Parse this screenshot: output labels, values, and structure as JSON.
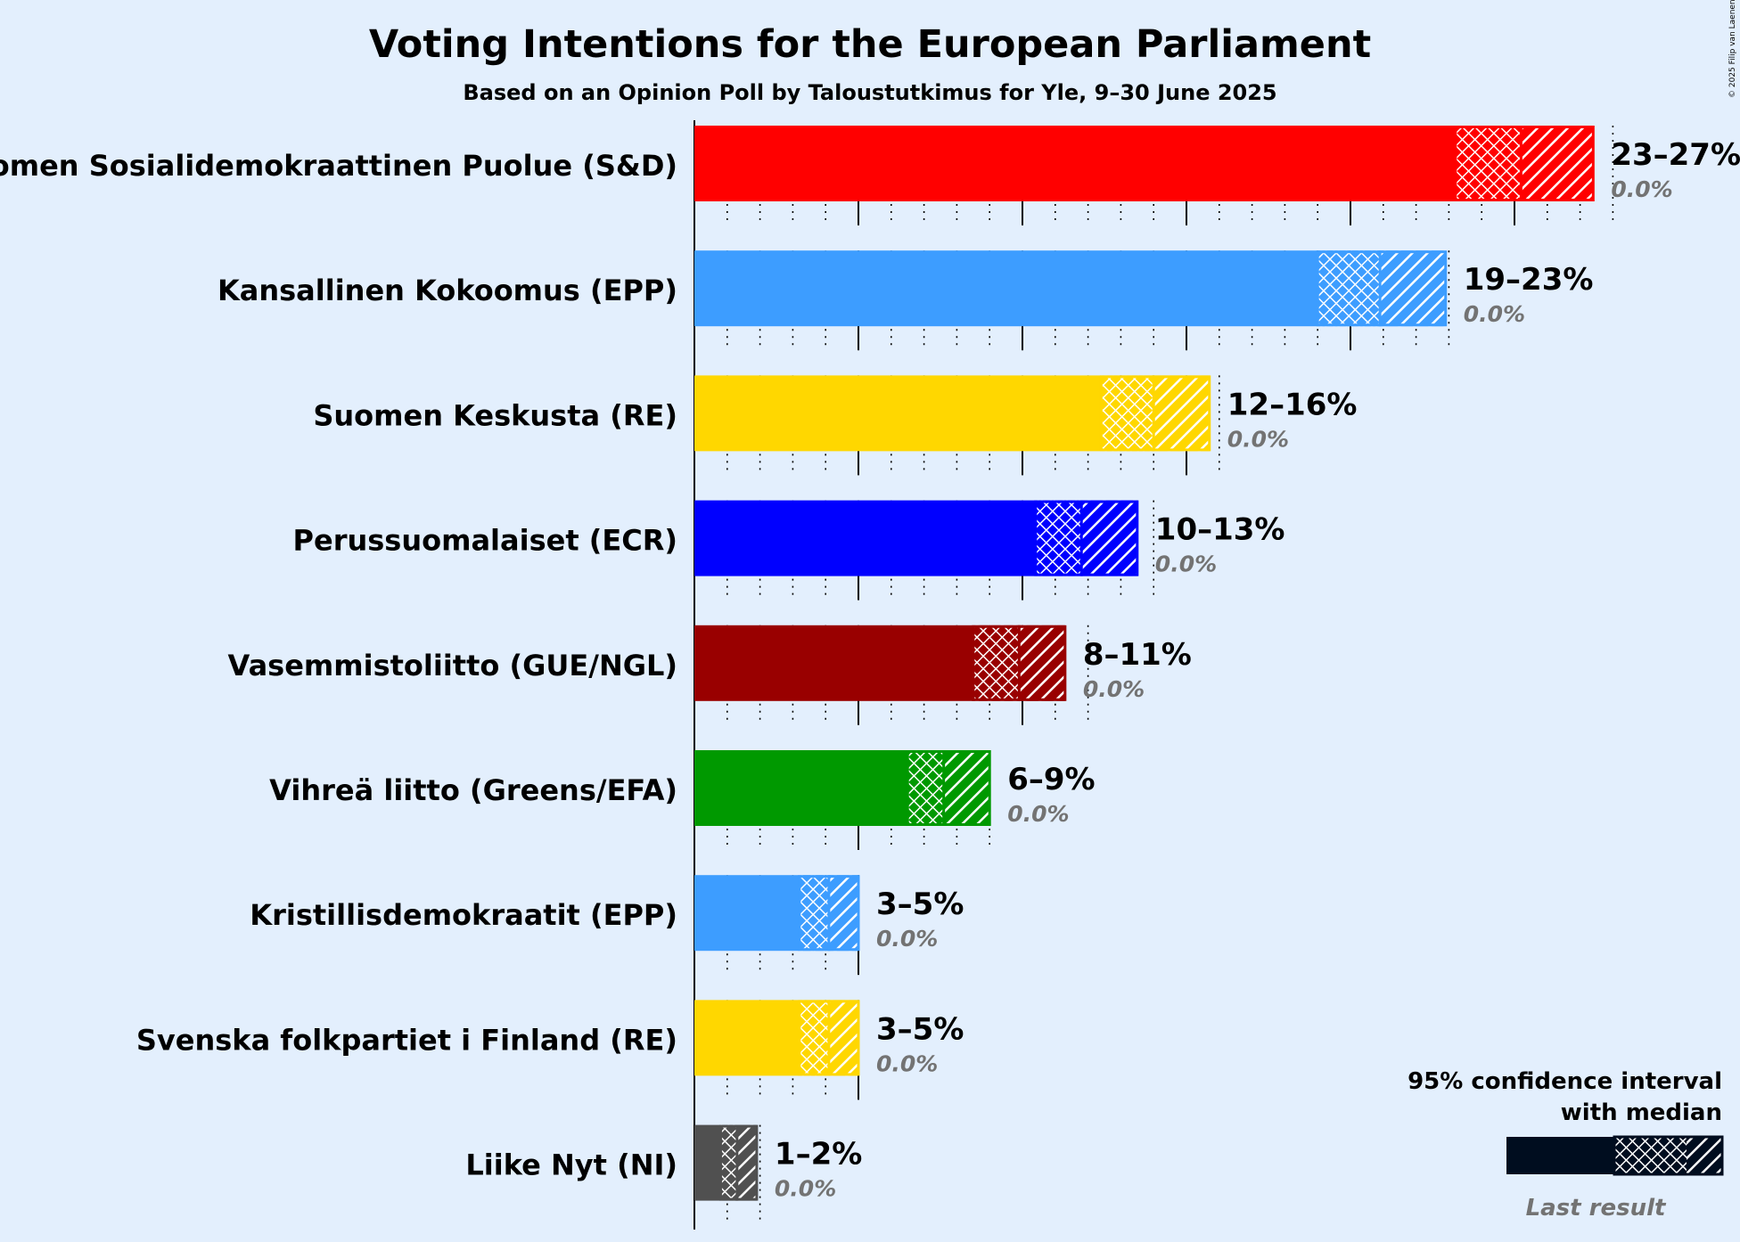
{
  "chart_data": {
    "type": "bar",
    "title": "Voting Intentions for the European Parliament",
    "subtitle": "Based on an Opinion Poll by Taloustutkimus for Yle, 9–30 June 2025",
    "copyright": "© 2025 Filip van Laenen",
    "unit": "%",
    "x_range": [
      0,
      27
    ],
    "legend": {
      "line1": "95% confidence interval",
      "line2": "with median",
      "last_result": "Last result",
      "placement": "bottom-right"
    },
    "parties": [
      {
        "name": "Suomen Sosialidemokraattinen Puolue (S&D)",
        "color": "#ff0000",
        "low": 23.2,
        "median": 25.2,
        "high": 27.4,
        "range_label": "23–27%",
        "last_label": "0.0%"
      },
      {
        "name": "Kansallinen Kokoomus (EPP)",
        "color": "#3d9dff",
        "low": 19.0,
        "median": 20.9,
        "high": 22.9,
        "range_label": "19–23%",
        "last_label": "0.0%"
      },
      {
        "name": "Suomen Keskusta (RE)",
        "color": "#ffd700",
        "low": 12.4,
        "median": 14.0,
        "high": 15.7,
        "range_label": "12–16%",
        "last_label": "0.0%"
      },
      {
        "name": "Perussuomalaiset (ECR)",
        "color": "#0000ff",
        "low": 10.4,
        "median": 11.8,
        "high": 13.5,
        "range_label": "10–13%",
        "last_label": "0.0%"
      },
      {
        "name": "Vasemmistoliitto (GUE/NGL)",
        "color": "#990000",
        "low": 8.5,
        "median": 9.9,
        "high": 11.3,
        "range_label": "8–11%",
        "last_label": "0.0%"
      },
      {
        "name": "Vihreä liitto (Greens/EFA)",
        "color": "#009900",
        "low": 6.5,
        "median": 7.6,
        "high": 9.0,
        "range_label": "6–9%",
        "last_label": "0.0%"
      },
      {
        "name": "Kristillisdemokraatit (EPP)",
        "color": "#3d9dff",
        "low": 3.2,
        "median": 4.1,
        "high": 5.0,
        "range_label": "3–5%",
        "last_label": "0.0%"
      },
      {
        "name": "Svenska folkpartiet i Finland (RE)",
        "color": "#ffd700",
        "low": 3.2,
        "median": 4.1,
        "high": 5.0,
        "range_label": "3–5%",
        "last_label": "0.0%"
      },
      {
        "name": "Liike Nyt (NI)",
        "color": "#505050",
        "low": 0.8,
        "median": 1.3,
        "high": 1.9,
        "range_label": "1–2%",
        "last_label": "0.0%"
      }
    ]
  }
}
